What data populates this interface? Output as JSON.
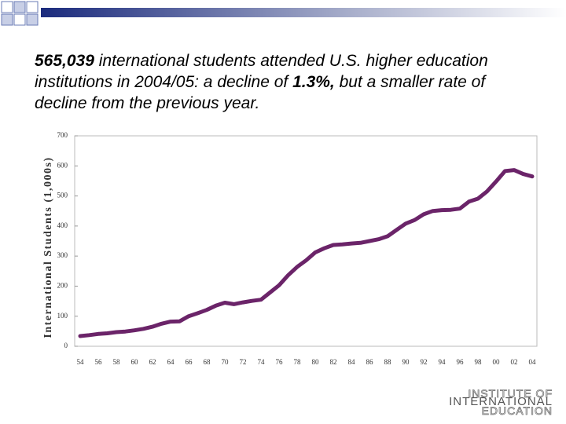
{
  "chart_data": {
    "type": "line",
    "text": [
      {
        "text": "565,039",
        "bold": true
      },
      {
        "text": " international students attended U.S. higher education institutions in 2004/05: a decline of ",
        "bold": false
      },
      {
        "text": "1.3%,",
        "bold": true
      },
      {
        "text": " but a smaller rate of decline from the previous year.",
        "bold": false
      }
    ],
    "ylabel": "International Students (1,000s)",
    "categories": [
      "54",
      null,
      "56",
      null,
      "58",
      null,
      "60",
      null,
      "62",
      null,
      "64",
      null,
      "66",
      null,
      "68",
      null,
      "70",
      null,
      "72",
      null,
      "74",
      null,
      "76",
      null,
      "78",
      null,
      "80",
      null,
      "82",
      null,
      "84",
      null,
      "86",
      null,
      "88",
      null,
      "90",
      null,
      "92",
      null,
      "94",
      null,
      "96",
      null,
      "98",
      null,
      "00",
      null,
      "02",
      null,
      "04"
    ],
    "series": [
      {
        "name": "International Students",
        "color": "#6b2469",
        "values": [
          34,
          37,
          41,
          43,
          47,
          49,
          53,
          58,
          65,
          75,
          82,
          83,
          100,
          110,
          121,
          135,
          145,
          140,
          146,
          151,
          155,
          179,
          203,
          236,
          264,
          286,
          312,
          326,
          337,
          339,
          342,
          344,
          350,
          356,
          366,
          387,
          408,
          420,
          439,
          450,
          453,
          454,
          458,
          481,
          491,
          515,
          548,
          583,
          586,
          573,
          565
        ]
      }
    ],
    "ylim": [
      0,
      700
    ],
    "yticks": [
      0,
      100,
      200,
      300,
      400,
      500,
      600,
      700
    ],
    "logo": [
      "INSTITUTE OF",
      "INTERNATIONAL",
      "EDUCATION"
    ]
  }
}
